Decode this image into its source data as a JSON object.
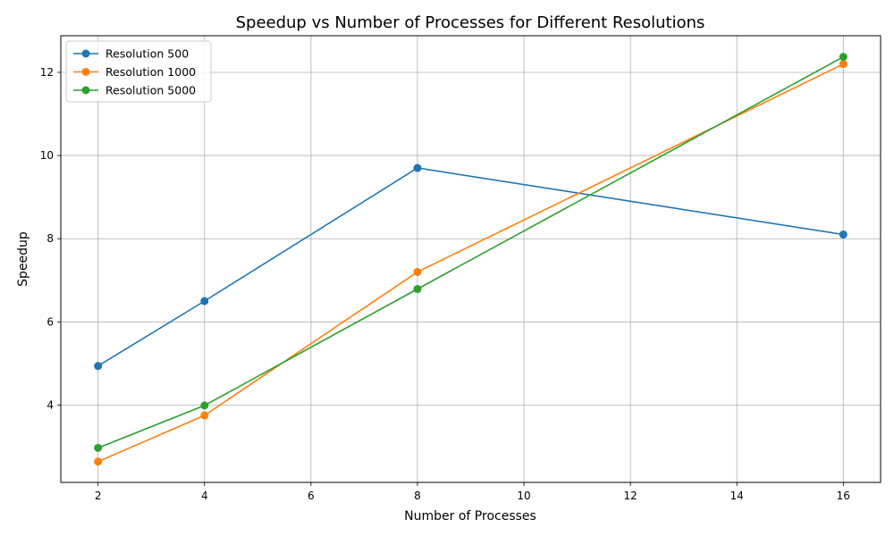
{
  "chart_data": {
    "type": "line",
    "title": "Speedup vs Number of Processes for Different Resolutions",
    "xlabel": "Number of Processes",
    "ylabel": "Speedup",
    "x": [
      2,
      4,
      8,
      16
    ],
    "xlim": [
      1.3,
      16.7
    ],
    "ylim": [
      2.14,
      12.88
    ],
    "xticks": [
      2,
      4,
      6,
      8,
      10,
      12,
      14,
      16
    ],
    "yticks": [
      4,
      6,
      8,
      10,
      12
    ],
    "grid": true,
    "legend_position": "top-left",
    "series": [
      {
        "name": "Resolution 500",
        "color": "#1f77b4",
        "values": [
          4.94,
          6.5,
          9.7,
          8.1
        ]
      },
      {
        "name": "Resolution 1000",
        "color": "#ff7f0e",
        "values": [
          2.64,
          3.75,
          7.2,
          12.2
        ]
      },
      {
        "name": "Resolution 5000",
        "color": "#2ca02c",
        "values": [
          2.97,
          3.99,
          6.79,
          12.37
        ]
      }
    ]
  }
}
